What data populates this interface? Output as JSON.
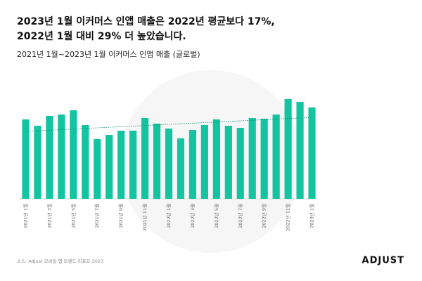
{
  "chart_data": {
    "type": "bar",
    "title": [
      "2023년 1월 이커머스 인앱 매출은 2022년 평균보다 17%,",
      "2022년 1월 대비 29% 더 높았습니다."
    ],
    "subtitle": "2021년 1월~2023년 1월 이커머스 인앱 매출 (글로벌)",
    "source": "소스: Adjust 모바일 앱 트렌드 리포트 2023",
    "logo": "ADJUST",
    "categories": [
      "2021년 1월",
      null,
      "2021년 3월",
      null,
      "2021년 5월",
      null,
      "2021년 7월",
      null,
      "2021년 9월",
      null,
      "2021년 11월",
      null,
      "2022년 1월",
      null,
      "2022년 3월",
      null,
      "2022년 5월",
      null,
      "2022년 7월",
      null,
      "2022년 9월",
      null,
      "2022년 11월",
      null,
      "2023년 1월"
    ],
    "values": [
      113,
      104,
      118,
      120,
      126,
      105,
      85,
      91,
      97,
      97,
      115,
      107,
      100,
      86,
      98,
      105,
      113,
      104,
      101,
      115,
      114,
      120,
      142,
      138,
      130
    ],
    "trend": [
      96,
      116
    ],
    "color": "#12c4a0",
    "ylim": [
      0,
      170
    ]
  }
}
